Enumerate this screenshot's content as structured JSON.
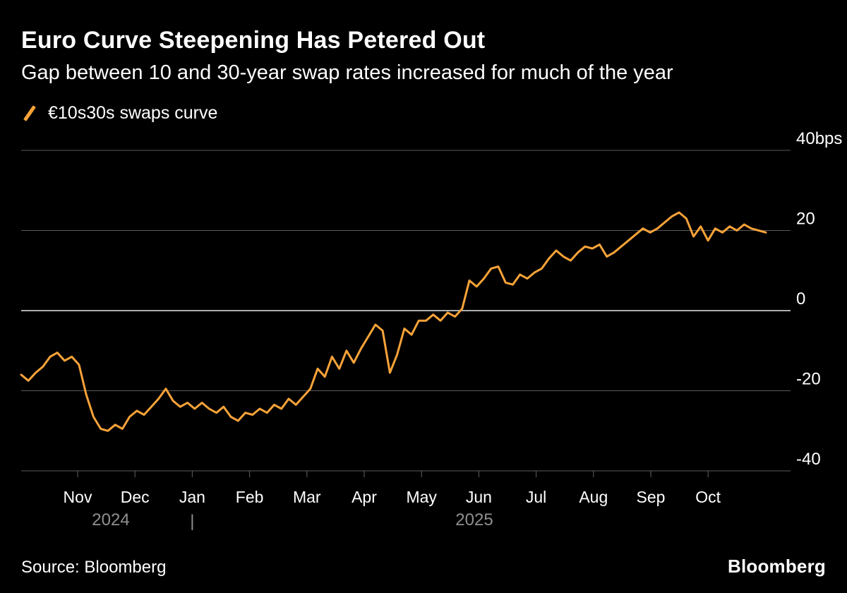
{
  "header": {
    "title": "Euro Curve Steepening Has Petered Out",
    "subtitle": "Gap between 10 and 30-year swap rates increased for much of the year"
  },
  "legend": {
    "series_label": "€10s30s swaps curve",
    "marker_color": "#F8A339"
  },
  "footer": {
    "source": "Source: Bloomberg",
    "brand": "Bloomberg"
  },
  "chart_data": {
    "type": "line",
    "title": "Euro Curve Steepening Has Petered Out",
    "subtitle": "Gap between 10 and 30-year swap rates increased for much of the year",
    "xlabel": "",
    "ylabel": "bps",
    "ylim": [
      -40,
      40
    ],
    "grid": true,
    "legend_position": "top-left",
    "background_color": "#000000",
    "line_color": "#F8A339",
    "grid_color": "#5a5a5a",
    "zero_line_color": "#e8e8e8",
    "y_ticks": [
      {
        "value": 40,
        "label": "40bps"
      },
      {
        "value": 20,
        "label": "20"
      },
      {
        "value": 0,
        "label": "0"
      },
      {
        "value": -20,
        "label": "-20"
      },
      {
        "value": -40,
        "label": "-40"
      }
    ],
    "x_ticks": [
      "Nov",
      "Dec",
      "Jan",
      "Feb",
      "Mar",
      "Apr",
      "May",
      "Jun",
      "Jul",
      "Aug",
      "Sep",
      "Oct"
    ],
    "year_labels": {
      "left": "2024",
      "divider": "|",
      "right": "2025"
    },
    "series": [
      {
        "name": "€10s30s swaps curve",
        "unit": "bps",
        "values": [
          -16,
          -17.5,
          -15.5,
          -14,
          -11.5,
          -10.5,
          -12.5,
          -11.5,
          -13.5,
          -21,
          -26.5,
          -29.5,
          -30,
          -28.5,
          -29.5,
          -26.5,
          -25,
          -26,
          -24,
          -22,
          -19.5,
          -22.5,
          -24,
          -23,
          -24.5,
          -23,
          -24.5,
          -25.5,
          -24,
          -26.5,
          -27.5,
          -25.5,
          -26,
          -24.5,
          -25.5,
          -23.5,
          -24.5,
          -22,
          -23.5,
          -21.5,
          -19.5,
          -14.5,
          -16.5,
          -11.5,
          -14.5,
          -10,
          -13,
          -9.5,
          -6.5,
          -3.5,
          -5,
          -15.5,
          -11,
          -4.5,
          -6,
          -2.5,
          -2.5,
          -1,
          -2.5,
          -0.5,
          -1.5,
          0.5,
          7.5,
          6,
          8,
          10.5,
          11,
          7,
          6.5,
          9,
          8,
          9.5,
          10.5,
          13,
          15,
          13.5,
          12.5,
          14.5,
          16,
          15.5,
          16.5,
          13.5,
          14.5,
          16,
          17.5,
          19,
          20.5,
          19.5,
          20.5,
          22,
          23.5,
          24.5,
          23,
          18.5,
          21,
          17.5,
          20.5,
          19.5,
          21,
          20,
          21.5,
          20.5,
          20,
          19.5
        ]
      }
    ]
  }
}
